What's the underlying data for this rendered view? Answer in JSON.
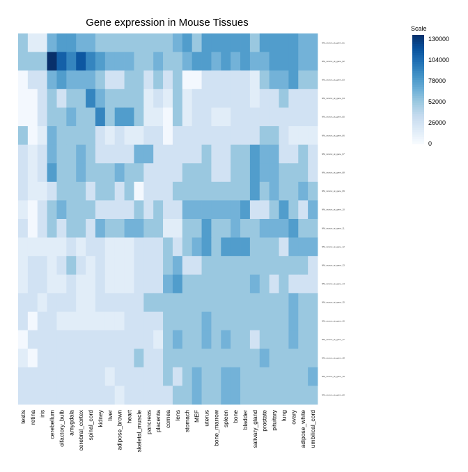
{
  "chart_data": {
    "type": "heatmap",
    "title": "Gene expression in Mouse Tissues",
    "xlabel": "",
    "ylabel": "",
    "columns": [
      "testis",
      "retina",
      "iris",
      "cerebellum",
      "olfactory_bulb",
      "amygdala",
      "cerebral_cortex",
      "spinal_cord",
      "kidney",
      "liver",
      "adipose_brown",
      "heart",
      "skeletal_muscle",
      "pancreas",
      "placenta",
      "cornea",
      "lens",
      "stomach",
      "MEF",
      "uterus",
      "bone_marrow",
      "spleen",
      "bone",
      "bladder",
      "salivary_gland",
      "prostate",
      "pituitary",
      "lung",
      "ovary",
      "adipose_white",
      "umbilical_cord"
    ],
    "rows": [
      "NM_xxxxxx_at_gene_01",
      "NM_xxxxxx_at_gene_02",
      "NM_xxxxxx_at_gene_03",
      "NM_xxxxxx_at_gene_04",
      "NM_xxxxxx_at_gene_05",
      "NM_xxxxxx_at_gene_06",
      "NM_xxxxxx_at_gene_07",
      "NM_xxxxxx_at_gene_08",
      "NM_xxxxxx_at_gene_09",
      "NM_xxxxxx_at_gene_10",
      "NM_xxxxxx_at_gene_11",
      "NM_xxxxxx_at_gene_12",
      "NM_xxxxxx_at_gene_13",
      "NM_xxxxxx_at_gene_14",
      "NM_xxxxxx_at_gene_15",
      "NM_xxxxxx_at_gene_16",
      "NM_xxxxxx_at_gene_17",
      "NM_xxxxxx_at_gene_18",
      "NM_xxxxxx_at_gene_19",
      "NM_xxxxxx_at_gene_20"
    ],
    "values": [
      [
        52000,
        15000,
        15000,
        65000,
        78000,
        78000,
        65000,
        65000,
        52000,
        52000,
        52000,
        52000,
        52000,
        52000,
        52000,
        52000,
        65000,
        78000,
        52000,
        78000,
        78000,
        78000,
        78000,
        78000,
        52000,
        78000,
        78000,
        78000,
        78000,
        65000,
        65000
      ],
      [
        52000,
        52000,
        52000,
        135000,
        110000,
        91000,
        115000,
        91000,
        78000,
        65000,
        65000,
        65000,
        52000,
        52000,
        65000,
        52000,
        52000,
        65000,
        78000,
        78000,
        65000,
        78000,
        65000,
        78000,
        65000,
        65000,
        78000,
        78000,
        78000,
        65000,
        65000
      ],
      [
        3000,
        26000,
        26000,
        65000,
        78000,
        65000,
        65000,
        65000,
        52000,
        26000,
        26000,
        52000,
        52000,
        26000,
        52000,
        26000,
        52000,
        3000,
        3000,
        26000,
        26000,
        26000,
        26000,
        26000,
        15000,
        52000,
        65000,
        65000,
        78000,
        52000,
        52000
      ],
      [
        3000,
        3000,
        26000,
        52000,
        26000,
        52000,
        52000,
        91000,
        65000,
        52000,
        52000,
        52000,
        52000,
        15000,
        26000,
        15000,
        52000,
        15000,
        26000,
        26000,
        26000,
        26000,
        26000,
        26000,
        15000,
        26000,
        26000,
        52000,
        26000,
        26000,
        26000
      ],
      [
        3000,
        3000,
        26000,
        52000,
        52000,
        65000,
        52000,
        52000,
        91000,
        52000,
        78000,
        78000,
        52000,
        15000,
        15000,
        3000,
        52000,
        15000,
        26000,
        26000,
        15000,
        15000,
        26000,
        26000,
        26000,
        26000,
        26000,
        26000,
        26000,
        26000,
        26000
      ],
      [
        52000,
        3000,
        15000,
        65000,
        52000,
        52000,
        52000,
        52000,
        26000,
        15000,
        26000,
        15000,
        15000,
        26000,
        26000,
        3000,
        26000,
        26000,
        26000,
        26000,
        26000,
        26000,
        26000,
        26000,
        26000,
        52000,
        52000,
        26000,
        15000,
        15000,
        15000
      ],
      [
        26000,
        15000,
        26000,
        65000,
        52000,
        52000,
        65000,
        52000,
        26000,
        26000,
        26000,
        26000,
        65000,
        65000,
        26000,
        26000,
        26000,
        26000,
        26000,
        52000,
        26000,
        26000,
        52000,
        52000,
        78000,
        65000,
        65000,
        26000,
        26000,
        52000,
        26000
      ],
      [
        26000,
        15000,
        26000,
        78000,
        52000,
        52000,
        65000,
        52000,
        52000,
        52000,
        65000,
        52000,
        52000,
        26000,
        26000,
        26000,
        26000,
        52000,
        52000,
        52000,
        26000,
        26000,
        52000,
        52000,
        78000,
        65000,
        65000,
        52000,
        52000,
        52000,
        26000
      ],
      [
        26000,
        15000,
        15000,
        26000,
        52000,
        52000,
        52000,
        26000,
        52000,
        52000,
        26000,
        52000,
        3000,
        26000,
        26000,
        26000,
        52000,
        52000,
        52000,
        52000,
        52000,
        52000,
        52000,
        52000,
        78000,
        52000,
        65000,
        52000,
        52000,
        65000,
        52000
      ],
      [
        15000,
        3000,
        26000,
        52000,
        65000,
        52000,
        52000,
        52000,
        26000,
        26000,
        26000,
        26000,
        52000,
        26000,
        52000,
        26000,
        26000,
        65000,
        65000,
        65000,
        65000,
        65000,
        65000,
        78000,
        26000,
        26000,
        52000,
        78000,
        52000,
        26000,
        65000
      ],
      [
        26000,
        3000,
        26000,
        52000,
        26000,
        52000,
        52000,
        26000,
        65000,
        52000,
        52000,
        65000,
        65000,
        52000,
        52000,
        15000,
        15000,
        52000,
        52000,
        78000,
        52000,
        52000,
        65000,
        52000,
        52000,
        65000,
        65000,
        65000,
        78000,
        52000,
        52000
      ],
      [
        15000,
        15000,
        15000,
        15000,
        15000,
        26000,
        15000,
        26000,
        26000,
        15000,
        15000,
        15000,
        26000,
        26000,
        26000,
        52000,
        26000,
        52000,
        65000,
        78000,
        52000,
        78000,
        78000,
        78000,
        52000,
        52000,
        52000,
        26000,
        65000,
        65000,
        65000
      ],
      [
        15000,
        26000,
        26000,
        15000,
        26000,
        52000,
        26000,
        15000,
        26000,
        15000,
        15000,
        15000,
        26000,
        26000,
        26000,
        52000,
        65000,
        26000,
        26000,
        52000,
        52000,
        52000,
        52000,
        52000,
        52000,
        52000,
        52000,
        52000,
        52000,
        52000,
        26000
      ],
      [
        15000,
        26000,
        26000,
        15000,
        15000,
        26000,
        15000,
        15000,
        26000,
        15000,
        15000,
        15000,
        26000,
        26000,
        26000,
        65000,
        78000,
        52000,
        52000,
        52000,
        52000,
        52000,
        52000,
        52000,
        65000,
        52000,
        26000,
        52000,
        26000,
        26000,
        26000
      ],
      [
        26000,
        26000,
        15000,
        26000,
        26000,
        26000,
        15000,
        15000,
        26000,
        26000,
        26000,
        26000,
        26000,
        52000,
        52000,
        52000,
        52000,
        52000,
        52000,
        52000,
        52000,
        52000,
        52000,
        52000,
        52000,
        52000,
        52000,
        52000,
        65000,
        52000,
        52000
      ],
      [
        26000,
        3000,
        26000,
        26000,
        15000,
        15000,
        15000,
        15000,
        15000,
        15000,
        15000,
        26000,
        26000,
        26000,
        26000,
        52000,
        52000,
        52000,
        52000,
        65000,
        52000,
        52000,
        52000,
        52000,
        52000,
        52000,
        52000,
        52000,
        65000,
        52000,
        52000
      ],
      [
        3000,
        26000,
        26000,
        26000,
        26000,
        26000,
        26000,
        26000,
        26000,
        26000,
        26000,
        26000,
        26000,
        26000,
        15000,
        52000,
        65000,
        52000,
        52000,
        65000,
        52000,
        65000,
        52000,
        52000,
        26000,
        52000,
        52000,
        52000,
        65000,
        52000,
        52000
      ],
      [
        15000,
        3000,
        26000,
        26000,
        26000,
        26000,
        26000,
        26000,
        26000,
        26000,
        26000,
        26000,
        52000,
        26000,
        26000,
        52000,
        52000,
        52000,
        52000,
        52000,
        52000,
        52000,
        52000,
        52000,
        52000,
        65000,
        52000,
        52000,
        52000,
        52000,
        52000
      ],
      [
        26000,
        26000,
        26000,
        26000,
        26000,
        26000,
        26000,
        26000,
        26000,
        15000,
        26000,
        26000,
        26000,
        26000,
        26000,
        52000,
        26000,
        52000,
        65000,
        52000,
        52000,
        65000,
        65000,
        52000,
        52000,
        52000,
        52000,
        52000,
        52000,
        52000,
        65000
      ],
      [
        26000,
        26000,
        26000,
        26000,
        26000,
        26000,
        26000,
        26000,
        26000,
        26000,
        15000,
        26000,
        26000,
        26000,
        26000,
        26000,
        52000,
        52000,
        65000,
        52000,
        52000,
        65000,
        65000,
        52000,
        52000,
        52000,
        52000,
        52000,
        52000,
        52000,
        52000
      ]
    ],
    "scale": {
      "title": "Scale",
      "ticks": [
        130000,
        104000,
        78000,
        52000,
        26000,
        0
      ],
      "colors": [
        "#f7fbff",
        "#deebf7",
        "#c6dbef",
        "#9ecae1",
        "#6baed6",
        "#4292c6",
        "#2171b5",
        "#08519c",
        "#08306b"
      ],
      "min": 0,
      "max": 135000
    },
    "legend_position": "top-right",
    "grid": false
  }
}
